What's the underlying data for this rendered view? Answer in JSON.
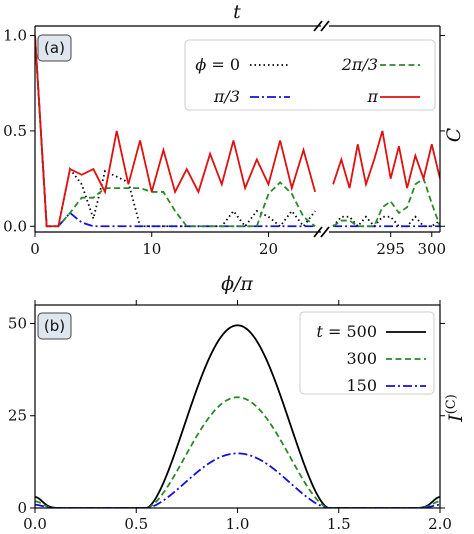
{
  "chart_data": [
    {
      "id": "a",
      "type": "line",
      "panel_label": "(a)",
      "xlabel": "t",
      "ylabel": "C",
      "ylim": [
        -0.03,
        1.05
      ],
      "yticks": [
        0.0,
        0.5,
        1.0
      ],
      "ytick_labels": [
        "0.0",
        "0.5",
        "1.0"
      ],
      "broken_x_axis": true,
      "segments": [
        {
          "xlim": [
            0,
            24.5
          ],
          "xticks": [
            0,
            10,
            20
          ],
          "xtick_labels": [
            "0",
            "10",
            "20"
          ]
        },
        {
          "xlim": [
            287.5,
            301
          ],
          "xticks": [
            295,
            300
          ],
          "xtick_labels": [
            "295",
            "300"
          ]
        }
      ],
      "legend": {
        "placement": "top-right",
        "columns": 2
      },
      "series": [
        {
          "name": "ϕ = 0",
          "name_main": "ϕ",
          "name_tail": " = 0",
          "color": "#000000",
          "style": "dotted",
          "x": [
            0,
            1,
            2,
            3,
            4,
            5,
            6,
            7,
            8,
            9,
            10,
            11,
            12,
            13,
            14,
            15,
            16,
            17,
            18,
            19,
            20,
            21,
            22,
            23,
            24,
            288,
            289,
            290,
            291,
            292,
            293,
            294,
            295,
            296,
            297,
            298,
            299,
            300,
            301
          ],
          "y": [
            1.0,
            0.0,
            0.0,
            0.3,
            0.22,
            0.04,
            0.29,
            0.26,
            0.23,
            0.0,
            0.0,
            0.0,
            0.0,
            0.0,
            0.0,
            0.0,
            0.0,
            0.08,
            0.0,
            0.08,
            0.05,
            0.0,
            0.08,
            0.0,
            0.08,
            0.0,
            0.05,
            0.05,
            0.0,
            0.05,
            0.0,
            0.05,
            0.05,
            0.0,
            0.0,
            0.05,
            0.0,
            0.0,
            0.03
          ]
        },
        {
          "name": "π/3",
          "name_main": "π/3",
          "name_tail": "",
          "color": "#1010e0",
          "style": "dashdot",
          "x": [
            0,
            1,
            2,
            3,
            4,
            5,
            6,
            7,
            8,
            9,
            10,
            11,
            12,
            13,
            14,
            15,
            16,
            17,
            18,
            19,
            20,
            21,
            22,
            23,
            24,
            288,
            289,
            290,
            291,
            292,
            293,
            294,
            295,
            296,
            297,
            298,
            299,
            300,
            301
          ],
          "y": [
            1.0,
            0.0,
            0.0,
            0.07,
            0.02,
            0.0,
            0.0,
            0.0,
            0.0,
            0.0,
            0.0,
            0.0,
            0.0,
            0.0,
            0.0,
            0.0,
            0.0,
            0.0,
            0.0,
            0.0,
            0.0,
            0.0,
            0.0,
            0.0,
            0.0,
            0.0,
            0.0,
            0.0,
            0.0,
            0.0,
            0.0,
            0.0,
            0.0,
            0.0,
            0.0,
            0.0,
            0.0,
            0.0,
            0.0
          ]
        },
        {
          "name": "2π/3",
          "name_main": "2π/3",
          "name_tail": "",
          "color": "#2a8a2a",
          "style": "dashed",
          "x": [
            0,
            1,
            2,
            3,
            4,
            5,
            6,
            7,
            8,
            9,
            10,
            11,
            12,
            13,
            14,
            15,
            16,
            17,
            18,
            19,
            20,
            21,
            22,
            23,
            24,
            288,
            289,
            290,
            291,
            292,
            293,
            294,
            295,
            296,
            297,
            298,
            299,
            300,
            301
          ],
          "y": [
            1.0,
            0.0,
            0.0,
            0.07,
            0.15,
            0.15,
            0.2,
            0.2,
            0.2,
            0.2,
            0.18,
            0.18,
            0.08,
            0.0,
            0.0,
            0.0,
            0.0,
            0.0,
            0.0,
            0.0,
            0.17,
            0.23,
            0.17,
            0.05,
            0.0,
            0.0,
            0.03,
            0.03,
            0.0,
            0.0,
            0.0,
            0.1,
            0.13,
            0.07,
            0.1,
            0.22,
            0.25,
            0.12,
            0.0
          ]
        },
        {
          "name": "π",
          "name_main": "π",
          "name_tail": "",
          "color": "#e01010",
          "style": "solid",
          "x": [
            0,
            1,
            2,
            3,
            4,
            5,
            6,
            7,
            8,
            9,
            10,
            11,
            12,
            13,
            14,
            15,
            16,
            17,
            18,
            19,
            20,
            21,
            22,
            23,
            24,
            288,
            289,
            290,
            291,
            292,
            293,
            294,
            295,
            296,
            297,
            298,
            299,
            300,
            301
          ],
          "y": [
            1.0,
            0.0,
            0.0,
            0.3,
            0.27,
            0.3,
            0.18,
            0.5,
            0.22,
            0.45,
            0.18,
            0.4,
            0.18,
            0.3,
            0.18,
            0.38,
            0.22,
            0.45,
            0.2,
            0.35,
            0.22,
            0.45,
            0.2,
            0.4,
            0.18,
            0.22,
            0.35,
            0.2,
            0.43,
            0.22,
            0.35,
            0.5,
            0.25,
            0.42,
            0.2,
            0.37,
            0.25,
            0.43,
            0.25
          ]
        }
      ]
    },
    {
      "id": "b",
      "type": "line",
      "panel_label": "(b)",
      "xlabel": "ϕ/π",
      "ylabel": "I^(C)",
      "ylabel_main": "I",
      "ylabel_sup": "(C)",
      "xlim": [
        0,
        2
      ],
      "ylim": [
        0,
        55
      ],
      "xticks": [
        0.0,
        0.5,
        1.0,
        1.5,
        2.0
      ],
      "xtick_labels": [
        "0.0",
        "0.5",
        "1.0",
        "1.5",
        "2.0"
      ],
      "yticks": [
        0,
        25,
        50
      ],
      "ytick_labels": [
        "0",
        "25",
        "50"
      ],
      "legend": {
        "placement": "top-right",
        "columns": 1
      },
      "series": [
        {
          "name": "t = 500",
          "name_main": "t",
          "name_tail": " = 500",
          "amplitude": 49.5,
          "color": "#000000",
          "style": "solid"
        },
        {
          "name": "300",
          "name_main": "300",
          "name_tail": "",
          "amplitude": 30.0,
          "color": "#2a8a2a",
          "style": "dashed"
        },
        {
          "name": "150",
          "name_main": "150",
          "name_tail": "",
          "amplitude": 14.8,
          "color": "#1010e0",
          "style": "dashdot"
        }
      ]
    }
  ]
}
